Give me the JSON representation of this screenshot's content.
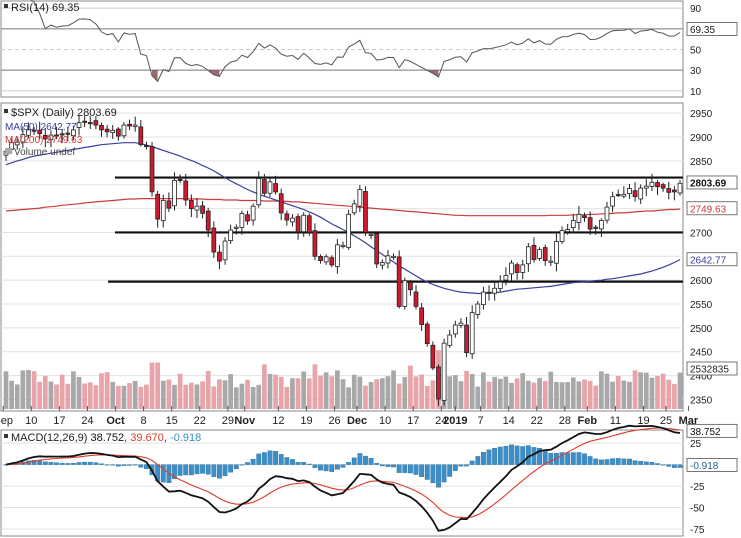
{
  "rsi_panel": {
    "legend": "RSI(14) 69.35",
    "current_label": "69.35",
    "ticks": [
      "90",
      "70",
      "50",
      "30",
      "10"
    ],
    "tick_values": [
      90,
      70,
      50,
      30,
      10
    ],
    "ylim": [
      5,
      95
    ]
  },
  "price_panel": {
    "legend_symbol": "$SPX (Daily) 2803.69",
    "legend_ma50": "MA(50) 2642.77",
    "legend_ma200": "MA(200) 2749.63",
    "legend_volume": "Volume undef",
    "ticks": [
      "2950",
      "2900",
      "2850",
      "2800",
      "2750",
      "2700",
      "2650",
      "2600",
      "2550",
      "2500",
      "2450",
      "2400",
      "2350"
    ],
    "tick_values": [
      2950,
      2900,
      2850,
      2800,
      2750,
      2700,
      2650,
      2600,
      2550,
      2500,
      2450,
      2400,
      2350
    ],
    "ylim": [
      2330,
      2965
    ],
    "labels": {
      "last_price": "2803.69",
      "ma200": "2749.63",
      "ma50": "2642.77",
      "volume": "2532835"
    }
  },
  "macd_panel": {
    "legend_prefix": "MACD(12,26,9)",
    "legend_macd": "38.752",
    "legend_signal": "39.670",
    "legend_hist": "-0.918",
    "ticks": [
      "25",
      "0",
      "-25",
      "-50",
      "-75"
    ],
    "tick_values": [
      25,
      0,
      -25,
      -50,
      -75
    ],
    "ylim": [
      -82,
      38
    ],
    "labels": {
      "macd": "38.752",
      "hist": "-0.918"
    }
  },
  "x_axis": {
    "labels": [
      "Sep",
      "10",
      "17",
      "24",
      "Oct",
      "8",
      "15",
      "22",
      "29",
      "Nov",
      "12",
      "19",
      "26",
      "Dec",
      "10",
      "17",
      "24",
      "2019",
      "7",
      "14",
      "22",
      "28",
      "Feb",
      "11",
      "19",
      "25",
      "Mar"
    ],
    "label_day_index": [
      -0.5,
      4.5,
      9.5,
      14.5,
      19.5,
      24.5,
      29.5,
      34.5,
      39.5,
      42.5,
      48.5,
      53.5,
      58.5,
      62.5,
      67.5,
      72.5,
      77.5,
      80,
      84.5,
      89.5,
      94.5,
      99.5,
      103.5,
      108.5,
      113.5,
      117.5,
      121.5
    ],
    "bold_labels": [
      "Oct",
      "Nov",
      "Dec",
      "2019",
      "Feb",
      "Mar"
    ]
  },
  "colors": {
    "up": "#ffffff",
    "down": "#cc1a2f",
    "ma50": "#3a3f9e",
    "ma200": "#cc3b3b",
    "volume_up": "#a8a8a8",
    "volume_down": "#e8a4a8",
    "macd_line": "#111111",
    "signal_line": "#e03a2a",
    "histogram": "#3b8ec7",
    "rsi_line": "#555555",
    "rsi_fill": "#8a4f56"
  },
  "chart_data": {
    "type": "candlestick",
    "symbol": "$SPX",
    "period": "Daily",
    "support_resistance_levels": [
      2815,
      2700,
      2597
    ],
    "ohlc_by_month": {
      "note": "trading days shown from early Sep 2018 to 1 Mar 2019",
      "closes": [
        2870,
        2888,
        2889,
        2905,
        2915,
        2913,
        2907,
        2896,
        2904,
        2902,
        2905,
        2906,
        2915,
        2930,
        2931,
        2930,
        2925,
        2915,
        2911,
        2914,
        2902,
        2925,
        2923,
        2925,
        2884,
        2880,
        2785,
        2728,
        2767,
        2751,
        2809,
        2810,
        2768,
        2750,
        2755,
        2740,
        2705,
        2659,
        2640,
        2682,
        2705,
        2711,
        2740,
        2724,
        2755,
        2813,
        2782,
        2806,
        2785,
        2741,
        2726,
        2730,
        2701,
        2736,
        2700,
        2650,
        2641,
        2649,
        2632,
        2674,
        2673,
        2738,
        2760,
        2790,
        2700,
        2696,
        2634,
        2637,
        2651,
        2650,
        2545,
        2599,
        2580,
        2545,
        2507,
        2467,
        2416,
        2351,
        2468,
        2485,
        2506,
        2510,
        2448,
        2532,
        2550,
        2575,
        2574,
        2583,
        2596,
        2610,
        2636,
        2616,
        2632,
        2670,
        2643,
        2664,
        2641,
        2640,
        2681,
        2704,
        2706,
        2725,
        2738,
        2731,
        2707,
        2709,
        2725,
        2753,
        2775,
        2779,
        2780,
        2792,
        2775,
        2793,
        2797,
        2805,
        2796,
        2793,
        2784,
        2785,
        2803
      ],
      "ma50": [
        2842,
        2846,
        2850,
        2853,
        2857,
        2860,
        2862,
        2864,
        2866,
        2868,
        2870,
        2872,
        2874,
        2876,
        2878,
        2880,
        2882,
        2884,
        2885,
        2886,
        2887,
        2888,
        2888,
        2888,
        2886,
        2883,
        2880,
        2876,
        2872,
        2868,
        2864,
        2860,
        2855,
        2851,
        2846,
        2840,
        2835,
        2829,
        2822,
        2815,
        2808,
        2802,
        2796,
        2790,
        2785,
        2780,
        2776,
        2772,
        2768,
        2764,
        2760,
        2756,
        2752,
        2748,
        2743,
        2738,
        2732,
        2725,
        2718,
        2712,
        2706,
        2700,
        2693,
        2686,
        2678,
        2670,
        2662,
        2654,
        2646,
        2638,
        2630,
        2623,
        2616,
        2609,
        2602,
        2596,
        2591,
        2587,
        2583,
        2580,
        2577,
        2575,
        2574,
        2573,
        2572,
        2572,
        2573,
        2574,
        2575,
        2577,
        2579,
        2581,
        2582,
        2583,
        2584,
        2585,
        2586,
        2587,
        2589,
        2591,
        2593,
        2595,
        2596,
        2597,
        2598,
        2599,
        2600,
        2602,
        2603,
        2605,
        2607,
        2609,
        2611,
        2613,
        2616,
        2619,
        2623,
        2627,
        2632,
        2637,
        2643
      ],
      "ma200": [
        2745,
        2746,
        2747,
        2748,
        2749,
        2750,
        2751,
        2753,
        2754,
        2755,
        2757,
        2758,
        2759,
        2760,
        2762,
        2763,
        2764,
        2765,
        2766,
        2767,
        2768,
        2769,
        2770,
        2770,
        2771,
        2771,
        2771,
        2771,
        2771,
        2771,
        2771,
        2771,
        2771,
        2770,
        2770,
        2770,
        2769,
        2769,
        2769,
        2768,
        2768,
        2768,
        2767,
        2767,
        2767,
        2767,
        2766,
        2766,
        2766,
        2765,
        2765,
        2764,
        2764,
        2763,
        2762,
        2761,
        2760,
        2759,
        2758,
        2757,
        2756,
        2755,
        2754,
        2753,
        2752,
        2751,
        2750,
        2749,
        2748,
        2747,
        2746,
        2745,
        2744,
        2743,
        2742,
        2741,
        2740,
        2739,
        2738,
        2737,
        2736,
        2736,
        2735,
        2735,
        2735,
        2735,
        2735,
        2735,
        2735,
        2735,
        2735,
        2735,
        2735,
        2735,
        2735,
        2735,
        2735,
        2736,
        2736,
        2736,
        2736,
        2737,
        2737,
        2737,
        2738,
        2738,
        2739,
        2739,
        2740,
        2741,
        2741,
        2742,
        2743,
        2744,
        2745,
        2745,
        2746,
        2747,
        2748,
        2748,
        2749
      ]
    },
    "indicators": {
      "rsi_14": 69.35,
      "ma_50": 2642.77,
      "ma_200": 2749.63,
      "macd": 38.752,
      "macd_signal": 39.67,
      "macd_histogram": -0.918,
      "volume": 2532835
    }
  }
}
